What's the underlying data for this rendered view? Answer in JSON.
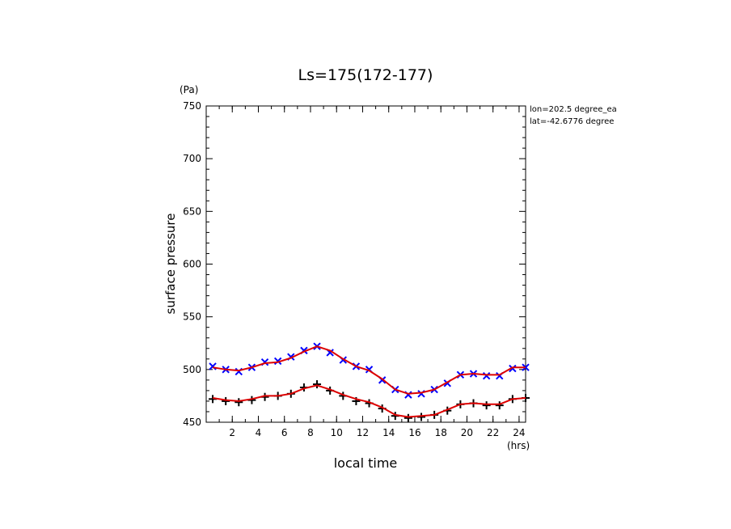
{
  "chart_data": {
    "type": "scatter",
    "title": "Ls=175(172-177)",
    "xlabel": "local time",
    "ylabel": "surface pressure",
    "x_unit": "(hrs)",
    "y_unit": "(Pa)",
    "annotations": [
      "lon=202.5 degree_ea",
      "lat=-42.6776 degree"
    ],
    "xlim": [
      0,
      24.5
    ],
    "ylim": [
      450,
      750
    ],
    "xticks": [
      2,
      4,
      6,
      8,
      10,
      12,
      14,
      16,
      18,
      20,
      22,
      24
    ],
    "yticks": [
      450,
      500,
      550,
      600,
      650,
      700,
      750
    ],
    "grid": false,
    "colors": {
      "series_upper": "#0000ff",
      "series_lower": "#000000",
      "fit": "#dd0000"
    },
    "series": [
      {
        "marker": "x",
        "x": [
          0.5,
          1.5,
          2.5,
          3.5,
          4.5,
          5.5,
          6.5,
          7.5,
          8.5,
          9.5,
          10.5,
          11.5,
          12.5,
          13.5,
          14.5,
          15.5,
          16.5,
          17.5,
          18.5,
          19.5,
          20.5,
          21.5,
          22.5,
          23.5,
          24.5
        ],
        "y": [
          503,
          500,
          498,
          502,
          507,
          508,
          512,
          518,
          522,
          516,
          509,
          503,
          500,
          490,
          481,
          476,
          477,
          481,
          487,
          495,
          496,
          494,
          494,
          501,
          502
        ]
      },
      {
        "marker": "+",
        "x": [
          0.5,
          1.5,
          2.5,
          3.5,
          4.5,
          5.5,
          6.5,
          7.5,
          8.5,
          9.5,
          10.5,
          11.5,
          12.5,
          13.5,
          14.5,
          15.5,
          16.5,
          17.5,
          18.5,
          19.5,
          20.5,
          21.5,
          22.5,
          23.5,
          24.5
        ],
        "y": [
          472,
          470,
          469,
          471,
          474,
          475,
          477,
          483,
          486,
          480,
          475,
          470,
          468,
          463,
          456,
          454,
          455,
          457,
          461,
          467,
          468,
          466,
          466,
          472,
          473
        ]
      }
    ],
    "fit_curves": [
      {
        "x": [
          0.5,
          1.5,
          2.5,
          3.5,
          4.5,
          5.5,
          6.5,
          7.5,
          8.5,
          9.5,
          10.5,
          11.5,
          12.5,
          13.5,
          14.5,
          15.5,
          16.5,
          17.5,
          18.5,
          19.5,
          20.5,
          21.5,
          22.5,
          23.5,
          24.5
        ],
        "y": [
          502,
          500,
          499,
          502,
          506,
          507,
          511,
          517,
          522,
          518,
          510,
          503,
          499,
          491,
          481,
          477,
          478,
          481,
          488,
          495,
          496,
          495,
          495,
          502,
          502
        ]
      },
      {
        "x": [
          0.5,
          1.5,
          2.5,
          3.5,
          4.5,
          5.5,
          6.5,
          7.5,
          8.5,
          9.5,
          10.5,
          11.5,
          12.5,
          13.5,
          14.5,
          15.5,
          16.5,
          17.5,
          18.5,
          19.5,
          20.5,
          21.5,
          22.5,
          23.5,
          24.5
        ],
        "y": [
          473,
          471,
          470,
          472,
          475,
          475,
          477,
          482,
          485,
          481,
          476,
          472,
          469,
          464,
          457,
          455,
          456,
          457,
          462,
          467,
          468,
          467,
          467,
          472,
          473
        ]
      }
    ]
  }
}
